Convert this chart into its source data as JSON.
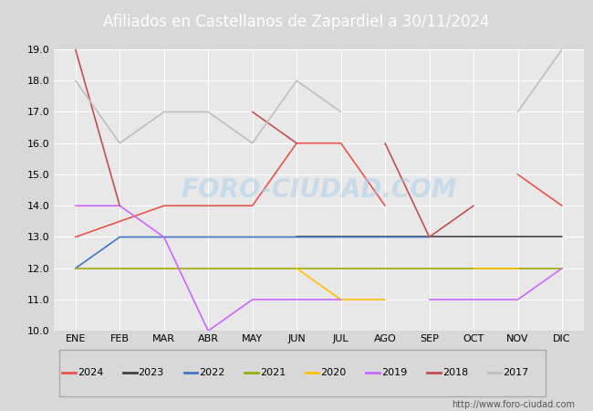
{
  "title": "Afiliados en Castellanos de Zapardiel a 30/11/2024",
  "ylim": [
    10.0,
    19.0
  ],
  "yticks": [
    10.0,
    11.0,
    12.0,
    13.0,
    14.0,
    15.0,
    16.0,
    17.0,
    18.0,
    19.0
  ],
  "months": [
    "ENE",
    "FEB",
    "MAR",
    "ABR",
    "MAY",
    "JUN",
    "JUL",
    "AGO",
    "SEP",
    "OCT",
    "NOV",
    "DIC"
  ],
  "series": {
    "2024": {
      "color": "#e8534a",
      "segments": [
        [
          [
            0,
            13
          ],
          [
            2,
            14
          ],
          [
            3,
            14
          ],
          [
            4,
            14
          ],
          [
            5,
            16
          ],
          [
            6,
            16
          ],
          [
            7,
            14
          ]
        ],
        [
          [
            10,
            15
          ],
          [
            11,
            14
          ]
        ]
      ]
    },
    "2023": {
      "color": "#404040",
      "segments": [
        [
          [
            5,
            13
          ],
          [
            6,
            13
          ],
          [
            7,
            13
          ],
          [
            8,
            13
          ],
          [
            9,
            13
          ],
          [
            10,
            13
          ],
          [
            11,
            13
          ]
        ]
      ]
    },
    "2022": {
      "color": "#4472c4",
      "segments": [
        [
          [
            0,
            12
          ],
          [
            1,
            13
          ],
          [
            2,
            13
          ],
          [
            3,
            13
          ],
          [
            4,
            13
          ],
          [
            5,
            13
          ],
          [
            6,
            13
          ],
          [
            7,
            13
          ],
          [
            8,
            13
          ]
        ]
      ]
    },
    "2021": {
      "color": "#9aaa00",
      "segments": [
        [
          [
            0,
            12
          ],
          [
            1,
            12
          ],
          [
            2,
            12
          ],
          [
            3,
            12
          ],
          [
            4,
            12
          ],
          [
            5,
            12
          ],
          [
            6,
            12
          ],
          [
            7,
            12
          ],
          [
            8,
            12
          ],
          [
            9,
            12
          ],
          [
            10,
            12
          ],
          [
            11,
            12
          ]
        ]
      ]
    },
    "2020": {
      "color": "#ffc000",
      "segments": [
        [
          [
            5,
            12
          ],
          [
            6,
            11
          ],
          [
            7,
            11
          ]
        ],
        [
          [
            9,
            12
          ],
          [
            10,
            12
          ]
        ]
      ]
    },
    "2019": {
      "color": "#cc66ff",
      "segments": [
        [
          [
            0,
            14
          ],
          [
            1,
            14
          ],
          [
            2,
            13
          ],
          [
            3,
            10
          ],
          [
            4,
            11
          ],
          [
            5,
            11
          ],
          [
            6,
            11
          ]
        ],
        [
          [
            8,
            11
          ],
          [
            9,
            11
          ],
          [
            10,
            11
          ],
          [
            11,
            12
          ]
        ]
      ]
    },
    "2018": {
      "color": "#c0504d",
      "segments": [
        [
          [
            0,
            19
          ],
          [
            1,
            14
          ]
        ],
        [
          [
            4,
            17
          ],
          [
            5,
            16
          ]
        ],
        [
          [
            7,
            16
          ],
          [
            8,
            13
          ],
          [
            9,
            14
          ]
        ]
      ]
    },
    "2017": {
      "color": "#bfbfbf",
      "segments": [
        [
          [
            0,
            18
          ],
          [
            1,
            16
          ],
          [
            2,
            17
          ],
          [
            3,
            17
          ],
          [
            4,
            16
          ],
          [
            5,
            18
          ],
          [
            6,
            17
          ]
        ],
        [
          [
            10,
            17
          ],
          [
            11,
            19
          ]
        ]
      ]
    }
  },
  "legend_order": [
    "2024",
    "2023",
    "2022",
    "2021",
    "2020",
    "2019",
    "2018",
    "2017"
  ],
  "watermark": "FORO-CIUDAD.COM",
  "website": "http://www.foro-ciudad.com",
  "title_bg": "#5b9bd5",
  "plot_bg": "#e8e8e8",
  "fig_bg": "#d8d8d8"
}
